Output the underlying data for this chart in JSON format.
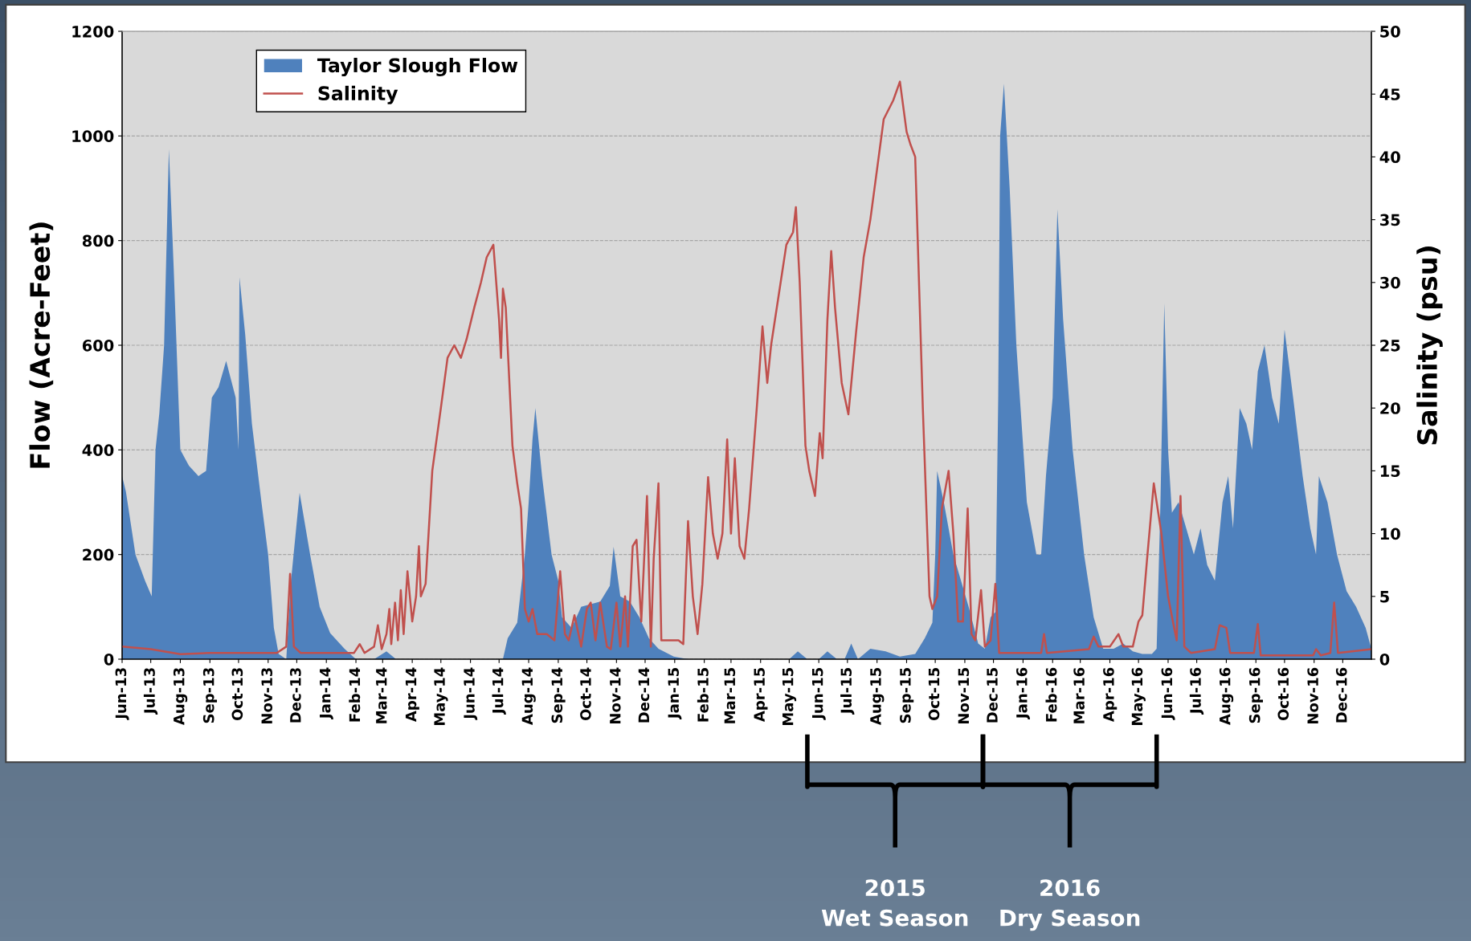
{
  "chart_data": {
    "type": "area",
    "xlabel": null,
    "ylabel": "Flow (Acre-Feet)",
    "y2label": "Salinity (psu)",
    "ylim": [
      0,
      1200
    ],
    "yticks": [
      0,
      200,
      400,
      600,
      800,
      1000,
      1200
    ],
    "y2lim": [
      0,
      50
    ],
    "y2ticks": [
      0,
      5,
      10,
      15,
      20,
      25,
      30,
      35,
      40,
      45,
      50
    ],
    "xlim": [
      "2013-06-01",
      "2016-12-31"
    ],
    "xticks": [
      {
        "value": "2013-06-01",
        "label": "Jun-13"
      },
      {
        "value": "2013-07-01",
        "label": "Jul-13"
      },
      {
        "value": "2013-08-01",
        "label": "Aug-13"
      },
      {
        "value": "2013-09-01",
        "label": "Sep-13"
      },
      {
        "value": "2013-10-01",
        "label": "Oct-13"
      },
      {
        "value": "2013-11-01",
        "label": "Nov-13"
      },
      {
        "value": "2013-12-01",
        "label": "Dec-13"
      },
      {
        "value": "2014-01-01",
        "label": "Jan-14"
      },
      {
        "value": "2014-02-01",
        "label": "Feb-14"
      },
      {
        "value": "2014-03-01",
        "label": "Mar-14"
      },
      {
        "value": "2014-04-01",
        "label": "Apr-14"
      },
      {
        "value": "2014-05-01",
        "label": "May-14"
      },
      {
        "value": "2014-06-01",
        "label": "Jun-14"
      },
      {
        "value": "2014-07-01",
        "label": "Jul-14"
      },
      {
        "value": "2014-08-01",
        "label": "Aug-14"
      },
      {
        "value": "2014-09-01",
        "label": "Sep-14"
      },
      {
        "value": "2014-10-01",
        "label": "Oct-14"
      },
      {
        "value": "2014-11-01",
        "label": "Nov-14"
      },
      {
        "value": "2014-12-01",
        "label": "Dec-14"
      },
      {
        "value": "2015-01-01",
        "label": "Jan-15"
      },
      {
        "value": "2015-02-01",
        "label": "Feb-15"
      },
      {
        "value": "2015-03-01",
        "label": "Mar-15"
      },
      {
        "value": "2015-04-01",
        "label": "Apr-15"
      },
      {
        "value": "2015-05-01",
        "label": "May-15"
      },
      {
        "value": "2015-06-01",
        "label": "Jun-15"
      },
      {
        "value": "2015-07-01",
        "label": "Jul-15"
      },
      {
        "value": "2015-08-01",
        "label": "Aug-15"
      },
      {
        "value": "2015-09-01",
        "label": "Sep-15"
      },
      {
        "value": "2015-10-01",
        "label": "Oct-15"
      },
      {
        "value": "2015-11-01",
        "label": "Nov-15"
      },
      {
        "value": "2015-12-01",
        "label": "Dec-15"
      },
      {
        "value": "2016-01-01",
        "label": "Jan-16"
      },
      {
        "value": "2016-02-01",
        "label": "Feb-16"
      },
      {
        "value": "2016-03-01",
        "label": "Mar-16"
      },
      {
        "value": "2016-04-01",
        "label": "Apr-16"
      },
      {
        "value": "2016-05-01",
        "label": "May-16"
      },
      {
        "value": "2016-06-01",
        "label": "Jun-16"
      },
      {
        "value": "2016-07-01",
        "label": "Jul-16"
      },
      {
        "value": "2016-08-01",
        "label": "Aug-16"
      },
      {
        "value": "2016-09-01",
        "label": "Sep-16"
      },
      {
        "value": "2016-10-01",
        "label": "Oct-16"
      },
      {
        "value": "2016-11-01",
        "label": "Nov-16"
      },
      {
        "value": "2016-12-01",
        "label": "Dec-16"
      }
    ],
    "grid": "y",
    "legend": "top left",
    "annotations": [
      "2015\nWet Season",
      "2016\nDry Season"
    ],
    "series": [
      {
        "name": "Taylor Slough Flow",
        "color": "#4f81bd",
        "x": [
          "2013-06-01",
          "2013-06-05",
          "2013-06-15",
          "2013-06-25",
          "2013-07-02",
          "2013-07-06",
          "2013-07-10",
          "2013-07-15",
          "2013-07-20",
          "2013-07-25",
          "2013-08-01",
          "2013-08-10",
          "2013-08-20",
          "2013-08-28",
          "2013-09-03",
          "2013-09-10",
          "2013-09-18",
          "2013-09-28",
          "2013-10-01",
          "2013-10-02",
          "2013-10-08",
          "2013-10-15",
          "2013-10-25",
          "2013-11-01",
          "2013-11-07",
          "2013-11-12",
          "2013-11-20",
          "2013-11-25",
          "2013-12-04",
          "2013-12-15",
          "2013-12-25",
          "2014-01-05",
          "2014-01-20",
          "2014-02-01",
          "2014-02-20",
          "2014-03-05",
          "2014-03-15",
          "2014-07-05",
          "2014-07-10",
          "2014-07-20",
          "2014-07-28",
          "2014-08-01",
          "2014-08-05",
          "2014-08-08",
          "2014-08-15",
          "2014-08-25",
          "2014-09-01",
          "2014-09-05",
          "2014-09-15",
          "2014-09-25",
          "2014-10-05",
          "2014-10-15",
          "2014-10-25",
          "2014-10-29",
          "2014-11-05",
          "2014-11-15",
          "2014-11-25",
          "2014-12-05",
          "2014-12-15",
          "2014-12-31",
          "2015-01-15",
          "2015-05-01",
          "2015-05-10",
          "2015-05-20",
          "2015-06-01",
          "2015-06-10",
          "2015-06-20",
          "2015-06-28",
          "2015-07-05",
          "2015-07-12",
          "2015-07-25",
          "2015-08-10",
          "2015-08-25",
          "2015-09-10",
          "2015-09-20",
          "2015-09-28",
          "2015-10-01",
          "2015-10-03",
          "2015-10-10",
          "2015-10-20",
          "2015-10-28",
          "2015-11-05",
          "2015-11-15",
          "2015-11-22",
          "2015-11-28",
          "2015-12-03",
          "2015-12-06",
          "2015-12-08",
          "2015-12-12",
          "2015-12-18",
          "2015-12-25",
          "2016-01-05",
          "2016-01-15",
          "2016-01-20",
          "2016-01-25",
          "2016-02-01",
          "2016-02-06",
          "2016-02-12",
          "2016-02-22",
          "2016-03-05",
          "2016-03-15",
          "2016-03-25",
          "2016-04-05",
          "2016-04-15",
          "2016-04-25",
          "2016-05-05",
          "2016-05-15",
          "2016-05-20",
          "2016-05-24",
          "2016-05-28",
          "2016-06-01",
          "2016-06-05",
          "2016-06-12",
          "2016-06-20",
          "2016-06-28",
          "2016-07-05",
          "2016-07-12",
          "2016-07-20",
          "2016-07-28",
          "2016-08-03",
          "2016-08-08",
          "2016-08-15",
          "2016-08-22",
          "2016-08-28",
          "2016-09-03",
          "2016-09-10",
          "2016-09-18",
          "2016-09-25",
          "2016-10-01",
          "2016-10-10",
          "2016-10-20",
          "2016-10-28",
          "2016-11-03",
          "2016-11-06",
          "2016-11-15",
          "2016-11-25",
          "2016-12-05",
          "2016-12-15",
          "2016-12-25",
          "2016-12-31"
        ],
        "values": [
          350,
          320,
          200,
          150,
          120,
          400,
          470,
          600,
          975,
          750,
          400,
          370,
          350,
          360,
          500,
          520,
          570,
          500,
          400,
          730,
          620,
          450,
          300,
          200,
          60,
          10,
          0,
          150,
          318,
          200,
          100,
          50,
          20,
          0,
          0,
          15,
          0,
          0,
          40,
          70,
          200,
          300,
          420,
          480,
          350,
          200,
          150,
          80,
          60,
          100,
          105,
          110,
          140,
          215,
          120,
          110,
          80,
          40,
          20,
          5,
          0,
          0,
          15,
          0,
          0,
          15,
          0,
          0,
          30,
          0,
          20,
          15,
          5,
          10,
          40,
          70,
          200,
          360,
          300,
          200,
          150,
          100,
          30,
          20,
          80,
          90,
          500,
          1000,
          1100,
          900,
          600,
          300,
          200,
          200,
          350,
          500,
          860,
          650,
          400,
          200,
          80,
          20,
          20,
          30,
          15,
          10,
          10,
          20,
          300,
          680,
          400,
          280,
          300,
          250,
          200,
          250,
          180,
          150,
          300,
          350,
          250,
          480,
          450,
          400,
          550,
          600,
          500,
          450,
          630,
          500,
          350,
          250,
          200,
          350,
          300,
          200,
          130,
          100,
          60,
          20
        ]
      },
      {
        "name": "Salinity",
        "type": "line",
        "axis": "y2",
        "color": "#c0504d",
        "x": [
          "2013-06-01",
          "2013-07-01",
          "2013-08-01",
          "2013-09-01",
          "2013-10-01",
          "2013-11-10",
          "2013-11-20",
          "2013-11-24",
          "2013-11-28",
          "2013-12-05",
          "2014-01-30",
          "2014-02-05",
          "2014-02-10",
          "2014-02-20",
          "2014-02-24",
          "2014-02-28",
          "2014-03-05",
          "2014-03-08",
          "2014-03-10",
          "2014-03-14",
          "2014-03-17",
          "2014-03-20",
          "2014-03-23",
          "2014-03-27",
          "2014-04-01",
          "2014-04-05",
          "2014-04-08",
          "2014-04-10",
          "2014-04-15",
          "2014-04-22",
          "2014-05-01",
          "2014-05-08",
          "2014-05-15",
          "2014-05-22",
          "2014-05-28",
          "2014-06-05",
          "2014-06-12",
          "2014-06-18",
          "2014-06-25",
          "2014-07-01",
          "2014-07-03",
          "2014-07-05",
          "2014-07-08",
          "2014-07-15",
          "2014-07-20",
          "2014-07-24",
          "2014-07-28",
          "2014-08-01",
          "2014-08-05",
          "2014-08-10",
          "2014-08-20",
          "2014-08-28",
          "2014-09-03",
          "2014-09-08",
          "2014-09-12",
          "2014-09-18",
          "2014-09-25",
          "2014-10-01",
          "2014-10-05",
          "2014-10-10",
          "2014-10-15",
          "2014-10-22",
          "2014-10-26",
          "2014-11-01",
          "2014-11-05",
          "2014-11-10",
          "2014-11-13",
          "2014-11-18",
          "2014-11-22",
          "2014-11-27",
          "2014-12-03",
          "2014-12-07",
          "2014-12-10",
          "2014-12-15",
          "2014-12-18",
          "2014-12-25",
          "2015-01-05",
          "2015-01-10",
          "2015-01-15",
          "2015-01-20",
          "2015-01-25",
          "2015-01-30",
          "2015-02-05",
          "2015-02-10",
          "2015-02-15",
          "2015-02-20",
          "2015-02-25",
          "2015-03-01",
          "2015-03-05",
          "2015-03-10",
          "2015-03-15",
          "2015-03-20",
          "2015-03-28",
          "2015-04-03",
          "2015-04-08",
          "2015-04-12",
          "2015-04-20",
          "2015-04-28",
          "2015-05-05",
          "2015-05-08",
          "2015-05-12",
          "2015-05-18",
          "2015-05-22",
          "2015-05-28",
          "2015-06-02",
          "2015-06-05",
          "2015-06-10",
          "2015-06-14",
          "2015-06-18",
          "2015-06-25",
          "2015-07-02",
          "2015-07-10",
          "2015-07-18",
          "2015-07-25",
          "2015-08-01",
          "2015-08-08",
          "2015-08-18",
          "2015-08-25",
          "2015-09-01",
          "2015-09-05",
          "2015-09-10",
          "2015-09-18",
          "2015-09-25",
          "2015-09-28",
          "2015-10-03",
          "2015-10-08",
          "2015-10-15",
          "2015-10-20",
          "2015-10-25",
          "2015-10-30",
          "2015-11-04",
          "2015-11-08",
          "2015-11-12",
          "2015-11-18",
          "2015-11-22",
          "2015-11-28",
          "2015-12-03",
          "2015-12-07",
          "2016-01-20",
          "2016-01-23",
          "2016-01-26",
          "2016-03-10",
          "2016-03-15",
          "2016-03-20",
          "2016-04-01",
          "2016-04-10",
          "2016-04-15",
          "2016-04-25",
          "2016-05-01",
          "2016-05-05",
          "2016-05-10",
          "2016-05-17",
          "2016-05-25",
          "2016-06-01",
          "2016-06-06",
          "2016-06-10",
          "2016-06-14",
          "2016-06-18",
          "2016-06-25",
          "2016-07-20",
          "2016-07-25",
          "2016-08-01",
          "2016-08-05",
          "2016-08-30",
          "2016-09-03",
          "2016-09-06",
          "2016-10-31",
          "2016-11-03",
          "2016-11-08",
          "2016-11-18",
          "2016-11-22",
          "2016-11-26",
          "2016-12-31"
        ],
        "values": [
          1,
          0.8,
          0.4,
          0.5,
          0.5,
          0.5,
          1,
          6.8,
          1,
          0.5,
          0.5,
          1.2,
          0.5,
          1,
          2.7,
          0.8,
          2,
          4,
          1.2,
          4.5,
          1.5,
          5.5,
          2,
          7,
          3,
          5,
          9,
          5,
          6,
          15,
          20,
          24,
          25,
          24,
          25.5,
          28,
          30,
          32,
          33,
          27,
          24,
          29.5,
          28,
          17,
          14,
          12,
          4,
          3,
          4,
          2,
          2,
          1.5,
          7,
          2,
          1.5,
          3.5,
          1,
          4,
          4.5,
          1.5,
          4.5,
          1,
          0.8,
          4.5,
          1,
          5,
          1,
          9,
          9.5,
          3,
          13,
          1,
          8,
          14,
          1.5,
          1.5,
          1.5,
          1.2,
          11,
          5,
          2,
          6,
          14.5,
          10,
          8,
          10,
          17.5,
          10,
          16,
          9,
          8,
          12,
          20,
          26.5,
          22,
          25,
          29,
          33,
          34,
          36,
          30,
          17,
          15,
          13,
          18,
          16,
          27,
          32.5,
          28,
          22,
          19.5,
          26,
          32,
          35,
          39,
          43,
          44.5,
          46,
          42,
          41,
          40,
          20,
          5,
          4,
          5,
          12,
          15,
          10,
          3,
          3,
          12,
          2,
          1.5,
          5.5,
          1,
          1.5,
          6,
          0.5,
          0.5,
          2,
          0.5,
          0.8,
          1.8,
          1,
          1,
          2,
          1,
          1,
          3,
          3.5,
          8,
          14,
          10,
          5,
          3,
          1.5,
          13,
          1,
          0.5,
          0.8,
          2.7,
          2.5,
          0.5,
          0.5,
          2.8,
          0.3,
          0.3,
          0.8,
          0.3,
          0.5,
          4.5,
          0.5,
          0.8
        ]
      }
    ]
  }
}
